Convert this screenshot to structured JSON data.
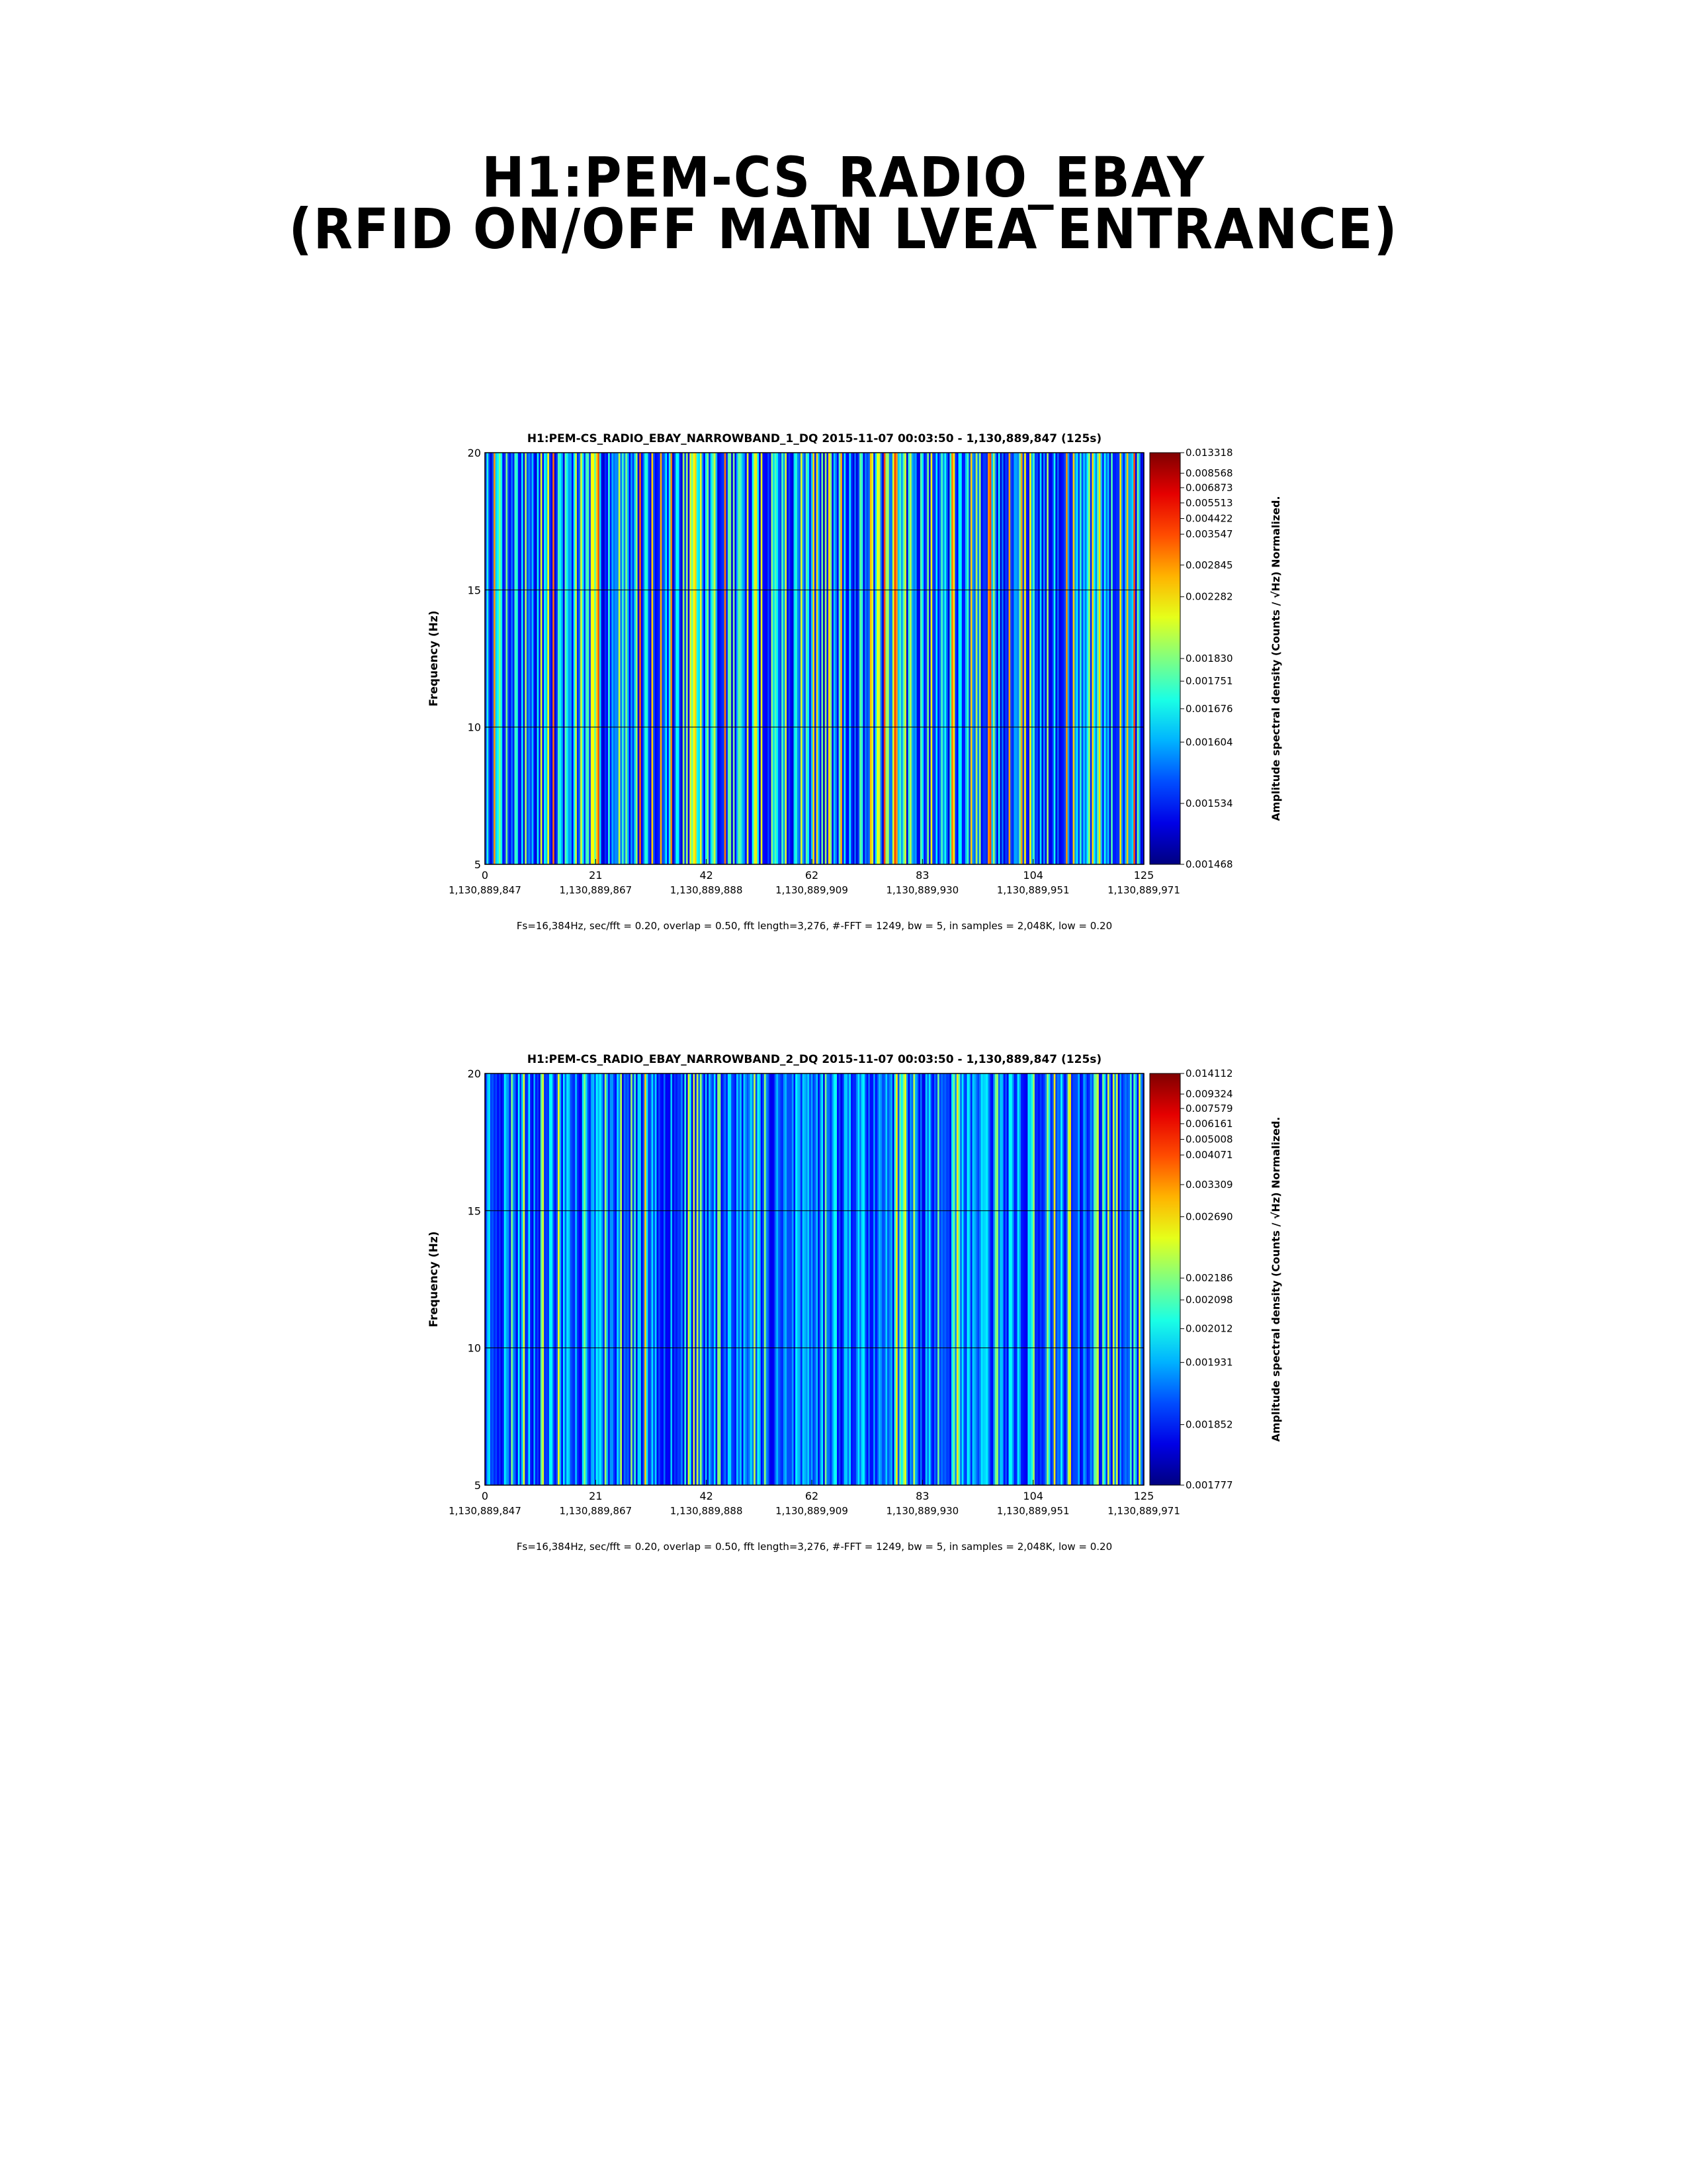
{
  "page": {
    "title_line_1": "H1:PEM-CS_RADIO_EBAY",
    "title_line_2": "(RFID ON/OFF MAIN LVEA ENTRANCE)"
  },
  "chart_data": [
    {
      "type": "heatmap",
      "title": "H1:PEM-CS_RADIO_EBAY_NARROWBAND_1_DQ 2015-11-07 00:03:50 - 1,130,889,847 (125s)",
      "xlabel": "",
      "ylabel": "Frequency (Hz)",
      "colorbar_label": "Amplitude spectral density (Counts / √Hz) Normalized.",
      "x_ticks": [
        0,
        21,
        42,
        62,
        83,
        104,
        125
      ],
      "x_ticks_gps": [
        "1,130,889,847",
        "1,130,889,867",
        "1,130,889,888",
        "1,130,889,909",
        "1,130,889,930",
        "1,130,889,951",
        "1,130,889,971"
      ],
      "xlim": [
        0,
        125
      ],
      "y_ticks": [
        5,
        10,
        15,
        20
      ],
      "ylim": [
        5,
        20
      ],
      "grid": true,
      "colormap": "jet",
      "colorbar_ticks": [
        "0.013318",
        "0.008568",
        "0.006873",
        "0.005513",
        "0.004422",
        "0.003547",
        "0.002845",
        "0.002282",
        "0.001830",
        "0.001751",
        "0.001676",
        "0.001604",
        "0.001534",
        "0.001468"
      ],
      "colorbar_tick_positions": [
        0.0,
        0.05,
        0.085,
        0.122,
        0.16,
        0.198,
        0.273,
        0.35,
        0.5,
        0.555,
        0.622,
        0.703,
        0.852,
        1.0
      ],
      "footer": "Fs=16,384Hz, sec/fft = 0.20, overlap = 0.50, fft length=3,276, #-FFT = 1249, bw = 5, in samples = 2,048K, low = 0.20",
      "seed": 7
    },
    {
      "type": "heatmap",
      "title": "H1:PEM-CS_RADIO_EBAY_NARROWBAND_2_DQ 2015-11-07 00:03:50 - 1,130,889,847 (125s)",
      "xlabel": "",
      "ylabel": "Frequency (Hz)",
      "colorbar_label": "Amplitude spectral density (Counts / √Hz) Normalized.",
      "x_ticks": [
        0,
        21,
        42,
        62,
        83,
        104,
        125
      ],
      "x_ticks_gps": [
        "1,130,889,847",
        "1,130,889,867",
        "1,130,889,888",
        "1,130,889,909",
        "1,130,889,930",
        "1,130,889,951",
        "1,130,889,971"
      ],
      "xlim": [
        0,
        125
      ],
      "y_ticks": [
        5,
        10,
        15,
        20
      ],
      "ylim": [
        5,
        20
      ],
      "grid": true,
      "colormap": "jet",
      "colorbar_ticks": [
        "0.014112",
        "0.009324",
        "0.007579",
        "0.006161",
        "0.005008",
        "0.004071",
        "0.003309",
        "0.002690",
        "0.002186",
        "0.002098",
        "0.002012",
        "0.001931",
        "0.001852",
        "0.001777"
      ],
      "colorbar_tick_positions": [
        0.0,
        0.05,
        0.085,
        0.122,
        0.16,
        0.198,
        0.27,
        0.348,
        0.497,
        0.55,
        0.62,
        0.702,
        0.853,
        1.0
      ],
      "footer": "Fs=16,384Hz, sec/fft = 0.20, overlap = 0.50, fft length=3,276, #-FFT = 1249, bw = 5, in samples = 2,048K, low = 0.20",
      "seed": 23
    }
  ]
}
